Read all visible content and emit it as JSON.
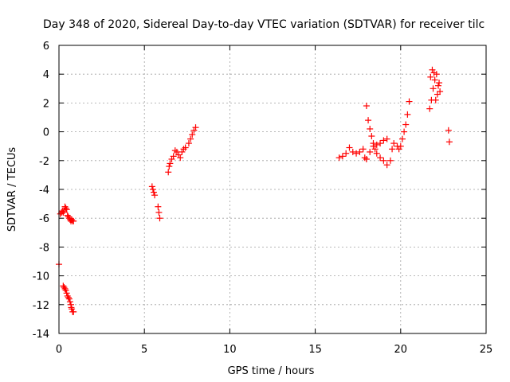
{
  "chart_data": {
    "type": "scatter",
    "title": "Day 348 of 2020, Sidereal Day-to-day VTEC variation (SDTVAR) for receiver tilc",
    "xlabel": "GPS time / hours",
    "ylabel": "SDTVAR / TECUs",
    "xlim": [
      0,
      25
    ],
    "ylim": [
      -14,
      6
    ],
    "xticks": [
      "0",
      "5",
      "10",
      "15",
      "20",
      "25"
    ],
    "yticks": [
      "6",
      "4",
      "2",
      "0",
      "-2",
      "-4",
      "-6",
      "-8",
      "-10",
      "-12",
      "-14"
    ],
    "grid": true,
    "marker": "+",
    "color": "#ff0000",
    "series": [
      {
        "x": [
          0.0,
          0.08,
          0.15,
          0.2,
          0.25,
          0.3,
          0.35,
          0.4,
          0.45,
          0.5,
          0.55,
          0.6,
          0.65,
          0.7,
          0.75,
          0.8,
          0.85,
          0.25,
          0.3,
          0.35,
          0.4,
          0.45,
          0.5,
          0.55,
          0.6,
          0.65,
          0.7,
          0.72,
          0.75,
          0.8,
          0.85,
          5.45,
          5.5,
          5.55,
          5.6,
          5.8,
          5.85,
          5.9,
          6.4,
          6.45,
          6.5,
          6.6,
          6.7,
          6.8,
          6.9,
          7.0,
          7.1,
          7.2,
          7.3,
          7.4,
          7.6,
          7.7,
          7.8,
          7.9,
          8.0,
          16.4,
          16.6,
          16.8,
          17.0,
          17.2,
          17.4,
          17.6,
          17.8,
          17.9,
          18.0,
          18.1,
          18.2,
          18.3,
          18.4,
          18.5,
          18.6,
          18.8,
          19.0,
          19.2,
          19.4,
          19.5,
          19.6,
          19.8,
          19.9,
          20.0,
          20.1,
          20.2,
          20.3,
          20.4,
          20.5,
          18.0,
          18.2,
          18.4,
          18.6,
          18.8,
          19.0,
          19.2,
          21.7,
          21.8,
          21.9,
          22.0,
          22.1,
          22.2,
          22.3,
          21.75,
          21.85,
          21.95,
          22.05,
          22.15,
          22.25,
          22.8,
          22.85
        ],
        "y": [
          -9.2,
          -5.7,
          -5.6,
          -5.5,
          -5.6,
          -5.5,
          -5.2,
          -5.3,
          -5.4,
          -5.8,
          -5.9,
          -6.0,
          -6.1,
          -6.2,
          -6.1,
          -6.2,
          -6.2,
          -10.7,
          -10.8,
          -10.9,
          -11.0,
          -11.2,
          -11.4,
          -11.5,
          -11.6,
          -11.8,
          -12.0,
          -12.2,
          -12.3,
          -12.5,
          -12.5,
          -3.8,
          -4.0,
          -4.2,
          -4.4,
          -5.2,
          -5.6,
          -6.0,
          -2.8,
          -2.4,
          -2.2,
          -1.9,
          -1.7,
          -1.3,
          -1.4,
          -1.6,
          -1.8,
          -1.4,
          -1.2,
          -1.1,
          -0.8,
          -0.5,
          -0.2,
          0.1,
          0.3,
          -1.8,
          -1.7,
          -1.5,
          -1.1,
          -1.4,
          -1.5,
          -1.4,
          -1.2,
          -1.8,
          1.8,
          0.8,
          0.2,
          -0.3,
          -0.8,
          -1.2,
          -1.5,
          -1.8,
          -2.0,
          -2.3,
          -2.0,
          -1.2,
          -0.8,
          -1.0,
          -1.2,
          -1.0,
          -0.5,
          0.0,
          0.5,
          1.2,
          2.1,
          -1.9,
          -1.4,
          -1.0,
          -0.9,
          -0.8,
          -0.6,
          -0.5,
          1.6,
          2.2,
          3.0,
          3.6,
          4.0,
          3.2,
          2.8,
          3.8,
          4.3,
          4.1,
          2.2,
          2.6,
          3.4,
          0.1,
          -0.7
        ]
      }
    ]
  }
}
